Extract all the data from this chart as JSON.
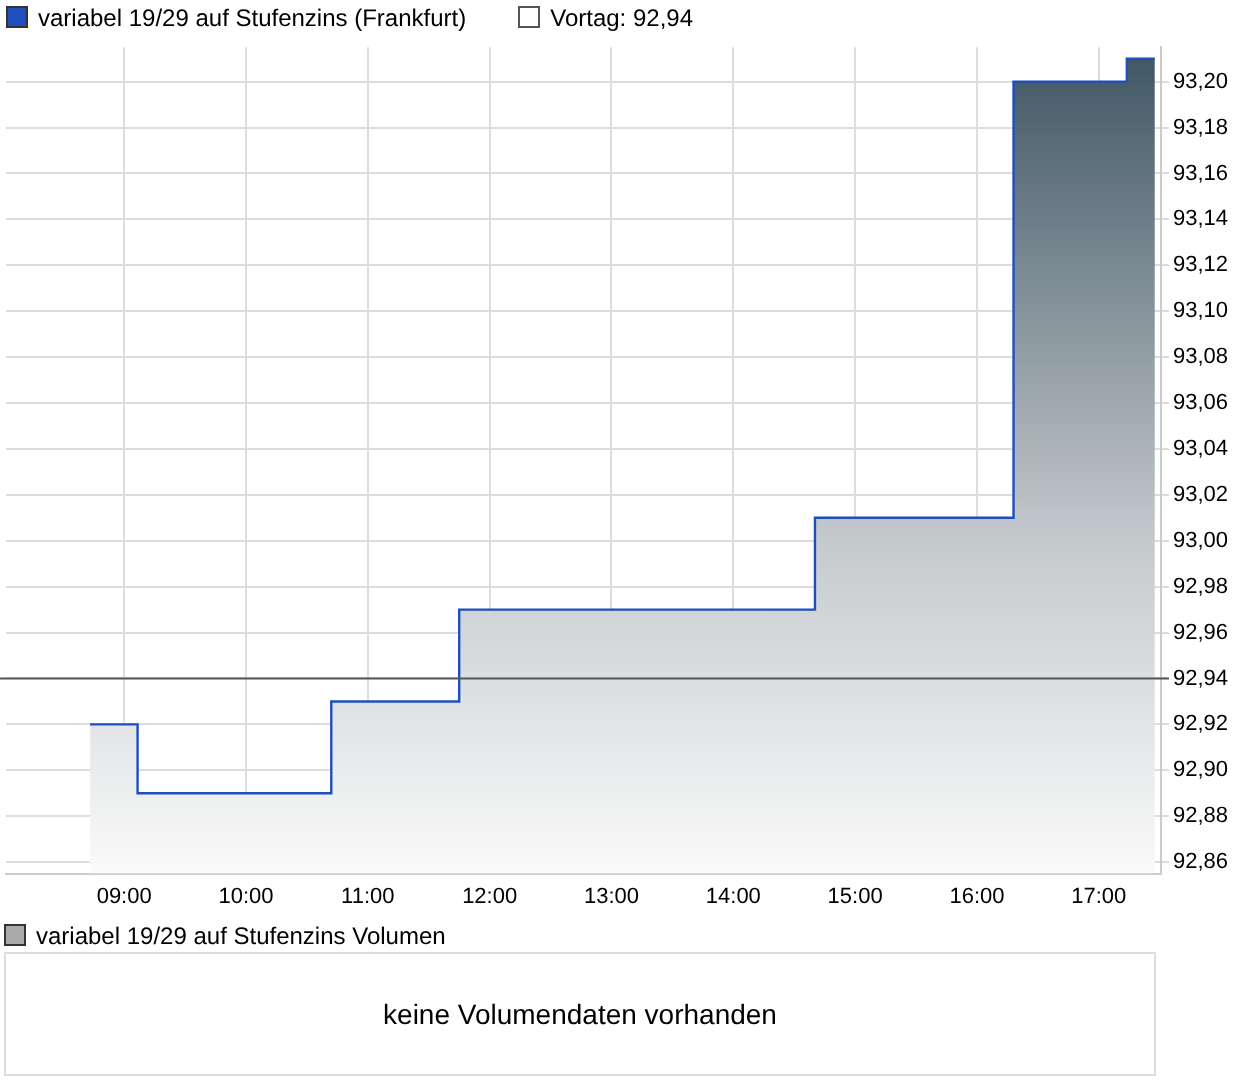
{
  "chart_data": [
    {
      "type": "area",
      "legend": "top left",
      "grid": true,
      "marker": "none",
      "tick_labels": "xy",
      "series": [
        {
          "name": "variabel 19/29 auf Stufenzins (Frankfurt)",
          "color": "#1f4fbf",
          "x": [
            8.72,
            9.11,
            9.11,
            10.7,
            10.7,
            11.75,
            11.75,
            14.67,
            14.67,
            16.3,
            16.3,
            17.23,
            17.23,
            17.46
          ],
          "values": [
            92.92,
            92.92,
            92.89,
            92.89,
            92.93,
            92.93,
            92.97,
            92.97,
            93.01,
            93.01,
            93.2,
            93.2,
            93.21,
            93.21
          ]
        }
      ],
      "ref_lines": [
        {
          "axis": "y",
          "value": 92.94,
          "label": "Vortag: 92,94",
          "color": "#555555"
        }
      ],
      "xlim": [
        8.03,
        17.51
      ],
      "xticks": [
        {
          "value": 9,
          "label": "09:00"
        },
        {
          "value": 10,
          "label": "10:00"
        },
        {
          "value": 11,
          "label": "11:00"
        },
        {
          "value": 12,
          "label": "12:00"
        },
        {
          "value": 13,
          "label": "13:00"
        },
        {
          "value": 14,
          "label": "14:00"
        },
        {
          "value": 15,
          "label": "15:00"
        },
        {
          "value": 16,
          "label": "16:00"
        },
        {
          "value": 17,
          "label": "17:00"
        }
      ],
      "ylim": [
        92.855,
        93.215
      ],
      "yticks": [
        {
          "value": 92.86,
          "label": "92,86"
        },
        {
          "value": 92.88,
          "label": "92,88"
        },
        {
          "value": 92.9,
          "label": "92,90"
        },
        {
          "value": 92.92,
          "label": "92,92"
        },
        {
          "value": 92.94,
          "label": "92,94"
        },
        {
          "value": 92.96,
          "label": "92,96"
        },
        {
          "value": 92.98,
          "label": "92,98"
        },
        {
          "value": 93,
          "label": "93,00"
        },
        {
          "value": 93.02,
          "label": "93,02"
        },
        {
          "value": 93.04,
          "label": "93,04"
        },
        {
          "value": 93.06,
          "label": "93,06"
        },
        {
          "value": 93.08,
          "label": "93,08"
        },
        {
          "value": 93.1,
          "label": "93,10"
        },
        {
          "value": 93.12,
          "label": "93,12"
        },
        {
          "value": 93.14,
          "label": "93,14"
        },
        {
          "value": 93.16,
          "label": "93,16"
        },
        {
          "value": 93.18,
          "label": "93,18"
        },
        {
          "value": 93.2,
          "label": "93,20"
        }
      ]
    },
    {
      "type": "other",
      "title": "variabel 19/29 auf Stufenzins Volumen",
      "annotations": [
        "keine Volumendaten vorhanden"
      ]
    }
  ]
}
